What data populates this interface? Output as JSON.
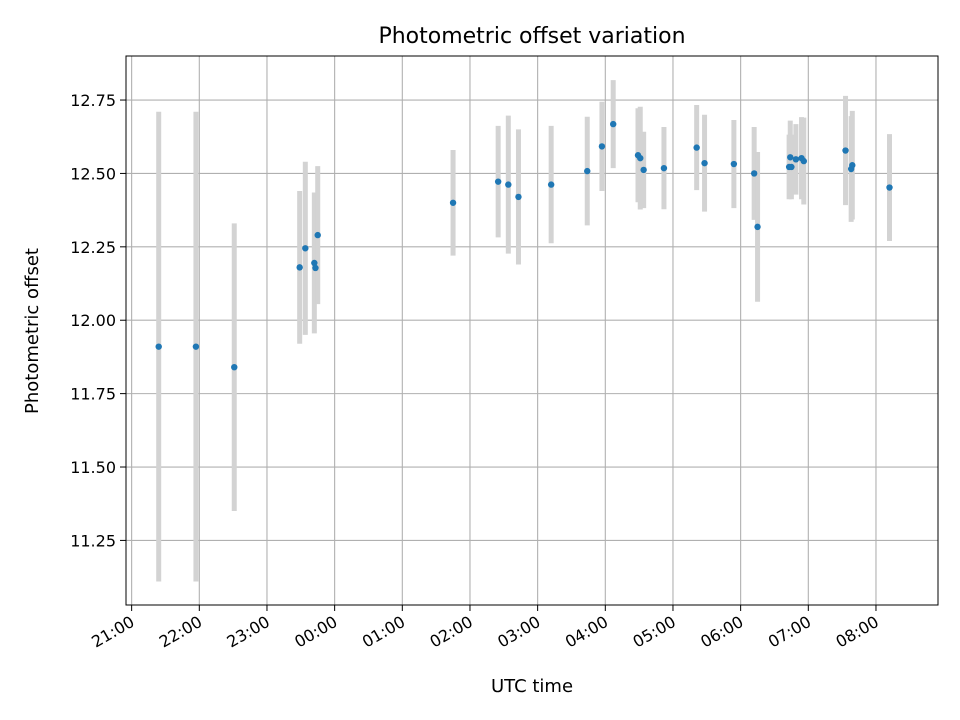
{
  "chart_data": {
    "type": "scatter",
    "title": "Photometric offset variation",
    "xlabel": "UTC time",
    "ylabel": "Photometric offset",
    "x_axis_type": "time",
    "xlim": [
      "20:55",
      "08:55"
    ],
    "ylim": [
      11.03,
      12.9
    ],
    "x_ticks": [
      "21:00",
      "22:00",
      "23:00",
      "00:00",
      "01:00",
      "02:00",
      "03:00",
      "04:00",
      "05:00",
      "06:00",
      "07:00",
      "08:00"
    ],
    "y_ticks": [
      "11.25",
      "11.50",
      "11.75",
      "12.00",
      "12.25",
      "12.50",
      "12.75"
    ],
    "grid": true,
    "point_color": "#1f77b4",
    "errorbar_color": "#d3d3d3",
    "points": [
      {
        "time": "21:24",
        "y": 11.91,
        "err": 0.8
      },
      {
        "time": "21:57",
        "y": 11.91,
        "err": 0.8
      },
      {
        "time": "22:31",
        "y": 11.84,
        "err": 0.49
      },
      {
        "time": "23:29",
        "y": 12.18,
        "err": 0.26
      },
      {
        "time": "23:34",
        "y": 12.245,
        "err": 0.295
      },
      {
        "time": "23:42",
        "y": 12.195,
        "err": 0.24
      },
      {
        "time": "23:43",
        "y": 12.178,
        "err": 0.0
      },
      {
        "time": "23:45",
        "y": 12.29,
        "err": 0.235
      },
      {
        "time": "01:45",
        "y": 12.4,
        "err": 0.18
      },
      {
        "time": "02:25",
        "y": 12.472,
        "err": 0.19
      },
      {
        "time": "02:34",
        "y": 12.462,
        "err": 0.235
      },
      {
        "time": "02:43",
        "y": 12.42,
        "err": 0.23
      },
      {
        "time": "03:12",
        "y": 12.462,
        "err": 0.2
      },
      {
        "time": "03:44",
        "y": 12.508,
        "err": 0.185
      },
      {
        "time": "03:57",
        "y": 12.592,
        "err": 0.152
      },
      {
        "time": "04:07",
        "y": 12.668,
        "err": 0.15
      },
      {
        "time": "04:29",
        "y": 12.562,
        "err": 0.16
      },
      {
        "time": "04:31",
        "y": 12.552,
        "err": 0.175
      },
      {
        "time": "04:34",
        "y": 12.512,
        "err": 0.13
      },
      {
        "time": "04:52",
        "y": 12.518,
        "err": 0.14
      },
      {
        "time": "05:21",
        "y": 12.588,
        "err": 0.145
      },
      {
        "time": "05:28",
        "y": 12.535,
        "err": 0.165
      },
      {
        "time": "05:54",
        "y": 12.532,
        "err": 0.15
      },
      {
        "time": "06:12",
        "y": 12.5,
        "err": 0.158
      },
      {
        "time": "06:15",
        "y": 12.318,
        "err": 0.255
      },
      {
        "time": "06:43",
        "y": 12.522,
        "err": 0.11
      },
      {
        "time": "06:44",
        "y": 12.555,
        "err": 0.125
      },
      {
        "time": "06:45",
        "y": 12.522,
        "err": 0.11
      },
      {
        "time": "06:49",
        "y": 12.548,
        "err": 0.12
      },
      {
        "time": "06:54",
        "y": 12.552,
        "err": 0.14
      },
      {
        "time": "06:56",
        "y": 12.542,
        "err": 0.148
      },
      {
        "time": "07:33",
        "y": 12.578,
        "err": 0.186
      },
      {
        "time": "07:38",
        "y": 12.515,
        "err": 0.18
      },
      {
        "time": "07:39",
        "y": 12.528,
        "err": 0.185
      },
      {
        "time": "08:12",
        "y": 12.452,
        "err": 0.182
      }
    ]
  }
}
